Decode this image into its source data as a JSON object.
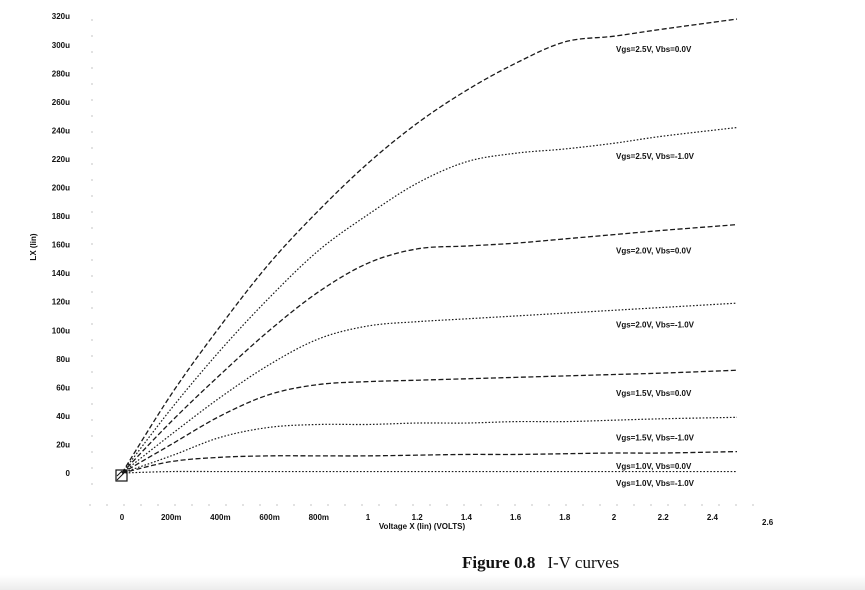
{
  "chart_data": {
    "type": "line",
    "xlabel": "Voltage X (lin) (VOLTS)",
    "ylabel": "LX (lin)",
    "xlim": [
      -0.1,
      2.55
    ],
    "ylim": [
      -20,
      320
    ],
    "x_ticks": [
      {
        "v": 0,
        "label": "0"
      },
      {
        "v": 0.2,
        "label": "200m"
      },
      {
        "v": 0.4,
        "label": "400m"
      },
      {
        "v": 0.6,
        "label": "600m"
      },
      {
        "v": 0.8,
        "label": "800m"
      },
      {
        "v": 1.0,
        "label": "1"
      },
      {
        "v": 1.2,
        "label": "1.2"
      },
      {
        "v": 1.4,
        "label": "1.4"
      },
      {
        "v": 1.6,
        "label": "1.6"
      },
      {
        "v": 1.8,
        "label": "1.8"
      },
      {
        "v": 2.0,
        "label": "2"
      },
      {
        "v": 2.2,
        "label": "2.2"
      },
      {
        "v": 2.4,
        "label": "2.4"
      },
      {
        "v": 2.6,
        "label": "2.6"
      }
    ],
    "y_ticks": [
      {
        "v": 0,
        "label": "0"
      },
      {
        "v": 20,
        "label": "20u"
      },
      {
        "v": 40,
        "label": "40u"
      },
      {
        "v": 60,
        "label": "60u"
      },
      {
        "v": 80,
        "label": "80u"
      },
      {
        "v": 100,
        "label": "100u"
      },
      {
        "v": 120,
        "label": "120u"
      },
      {
        "v": 140,
        "label": "140u"
      },
      {
        "v": 160,
        "label": "160u"
      },
      {
        "v": 180,
        "label": "180u"
      },
      {
        "v": 200,
        "label": "200u"
      },
      {
        "v": 220,
        "label": "220u"
      },
      {
        "v": 240,
        "label": "240u"
      },
      {
        "v": 260,
        "label": "260u"
      },
      {
        "v": 280,
        "label": "280u"
      },
      {
        "v": 300,
        "label": "300u"
      },
      {
        "v": 320,
        "label": "320u"
      }
    ],
    "series": [
      {
        "name": "Vgs=2.5V, Vbs=0.0V",
        "style": "dashed",
        "label_y": 297,
        "x": [
          0,
          0.2,
          0.4,
          0.6,
          0.8,
          1.0,
          1.2,
          1.4,
          1.6,
          1.8,
          2.0,
          2.2,
          2.5
        ],
        "y": [
          0,
          55,
          103,
          147,
          184,
          217,
          245,
          268,
          287,
          302,
          306,
          311,
          318
        ]
      },
      {
        "name": "Vgs=2.5V, Vbs=-1.0V",
        "style": "dotted",
        "label_y": 222,
        "x": [
          0,
          0.2,
          0.4,
          0.6,
          0.8,
          1.0,
          1.2,
          1.4,
          1.6,
          1.8,
          2.0,
          2.2,
          2.5
        ],
        "y": [
          0,
          45,
          86,
          123,
          156,
          181,
          203,
          218,
          224,
          227,
          231,
          236,
          242
        ]
      },
      {
        "name": "Vgs=2.0V, Vbs=0.0V",
        "style": "dashed",
        "label_y": 156,
        "x": [
          0,
          0.2,
          0.4,
          0.6,
          0.8,
          1.0,
          1.2,
          1.4,
          1.6,
          1.8,
          2.0,
          2.2,
          2.5
        ],
        "y": [
          0,
          36,
          69,
          100,
          127,
          147,
          157,
          159,
          161,
          164,
          167,
          170,
          174
        ]
      },
      {
        "name": "Vgs=2.0V, Vbs=-1.0V",
        "style": "dotted",
        "label_y": 104,
        "x": [
          0,
          0.2,
          0.4,
          0.6,
          0.8,
          1.0,
          1.2,
          1.4,
          1.6,
          1.8,
          2.0,
          2.2,
          2.5
        ],
        "y": [
          0,
          27,
          53,
          76,
          94,
          103,
          106,
          108,
          110,
          112,
          114,
          116,
          119
        ]
      },
      {
        "name": "Vgs=1.5V, Vbs=0.0V",
        "style": "dashed",
        "label_y": 56,
        "x": [
          0,
          0.2,
          0.4,
          0.6,
          0.8,
          1.0,
          1.2,
          1.4,
          1.6,
          1.8,
          2.0,
          2.2,
          2.5
        ],
        "y": [
          0,
          20,
          40,
          55,
          62,
          64,
          65,
          66,
          67,
          68,
          69,
          70,
          72
        ]
      },
      {
        "name": "Vgs=1.5V, Vbs=-1.0V",
        "style": "dotted",
        "label_y": 25,
        "x": [
          0,
          0.2,
          0.4,
          0.6,
          0.8,
          1.0,
          1.2,
          1.4,
          1.6,
          1.8,
          2.0,
          2.2,
          2.5
        ],
        "y": [
          0,
          12,
          25,
          32,
          34,
          34,
          35,
          35,
          36,
          36,
          37,
          38,
          39
        ]
      },
      {
        "name": "Vgs=1.0V, Vbs=0.0V",
        "style": "dashed",
        "label_y": 5,
        "x": [
          0,
          0.2,
          0.4,
          0.6,
          0.8,
          1.0,
          1.2,
          1.4,
          1.6,
          1.8,
          2.0,
          2.2,
          2.5
        ],
        "y": [
          0,
          8,
          11,
          12,
          12,
          12,
          12.5,
          13,
          13,
          13.5,
          14,
          14,
          15
        ]
      },
      {
        "name": "Vgs=1.0V, Vbs=-1.0V",
        "style": "dotted",
        "label_y": -7,
        "x": [
          0,
          0.2,
          0.4,
          0.6,
          0.8,
          1.0,
          1.2,
          1.4,
          1.6,
          1.8,
          2.0,
          2.2,
          2.5
        ],
        "y": [
          0,
          1,
          1,
          1,
          1,
          1,
          1,
          1,
          1,
          1,
          1,
          1,
          1
        ]
      }
    ]
  },
  "caption": {
    "number": "Figure 0.8",
    "text": "I-V curves"
  }
}
